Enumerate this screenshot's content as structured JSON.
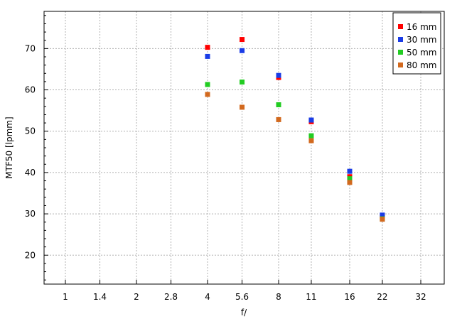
{
  "chart_data": {
    "type": "scatter",
    "title": "",
    "xlabel": "f/",
    "ylabel": "MTF50 [lpmm]",
    "x_scale": "log2",
    "x_ticks": [
      1,
      1.4,
      2,
      2.8,
      4,
      5.6,
      8,
      11,
      16,
      22,
      32
    ],
    "x_tick_labels": [
      "1",
      "1.4",
      "2",
      "2.8",
      "4",
      "5.6",
      "8",
      "11",
      "16",
      "22",
      "32"
    ],
    "xlim": [
      0.81,
      49
    ],
    "y_ticks": [
      20,
      30,
      40,
      50,
      60,
      70
    ],
    "y_tick_labels": [
      "20",
      "30",
      "40",
      "50",
      "60",
      "70"
    ],
    "ylim": [
      13,
      79
    ],
    "grid": true,
    "legend_position": "top-right",
    "x": [
      4,
      5.6,
      8,
      11,
      16,
      22
    ],
    "series": [
      {
        "name": "16 mm",
        "color": "#ff0000",
        "values": [
          70.3,
          72.2,
          63.0,
          52.3,
          39.0,
          29.2
        ]
      },
      {
        "name": "30 mm",
        "color": "#1a3ce6",
        "values": [
          68.1,
          69.5,
          63.5,
          52.7,
          40.3,
          29.7
        ]
      },
      {
        "name": "50 mm",
        "color": "#22cc22",
        "values": [
          61.3,
          61.9,
          56.4,
          48.9,
          38.5,
          28.8
        ]
      },
      {
        "name": "80 mm",
        "color": "#d2691e",
        "values": [
          58.9,
          55.8,
          52.8,
          47.7,
          37.6,
          28.7
        ]
      }
    ]
  }
}
